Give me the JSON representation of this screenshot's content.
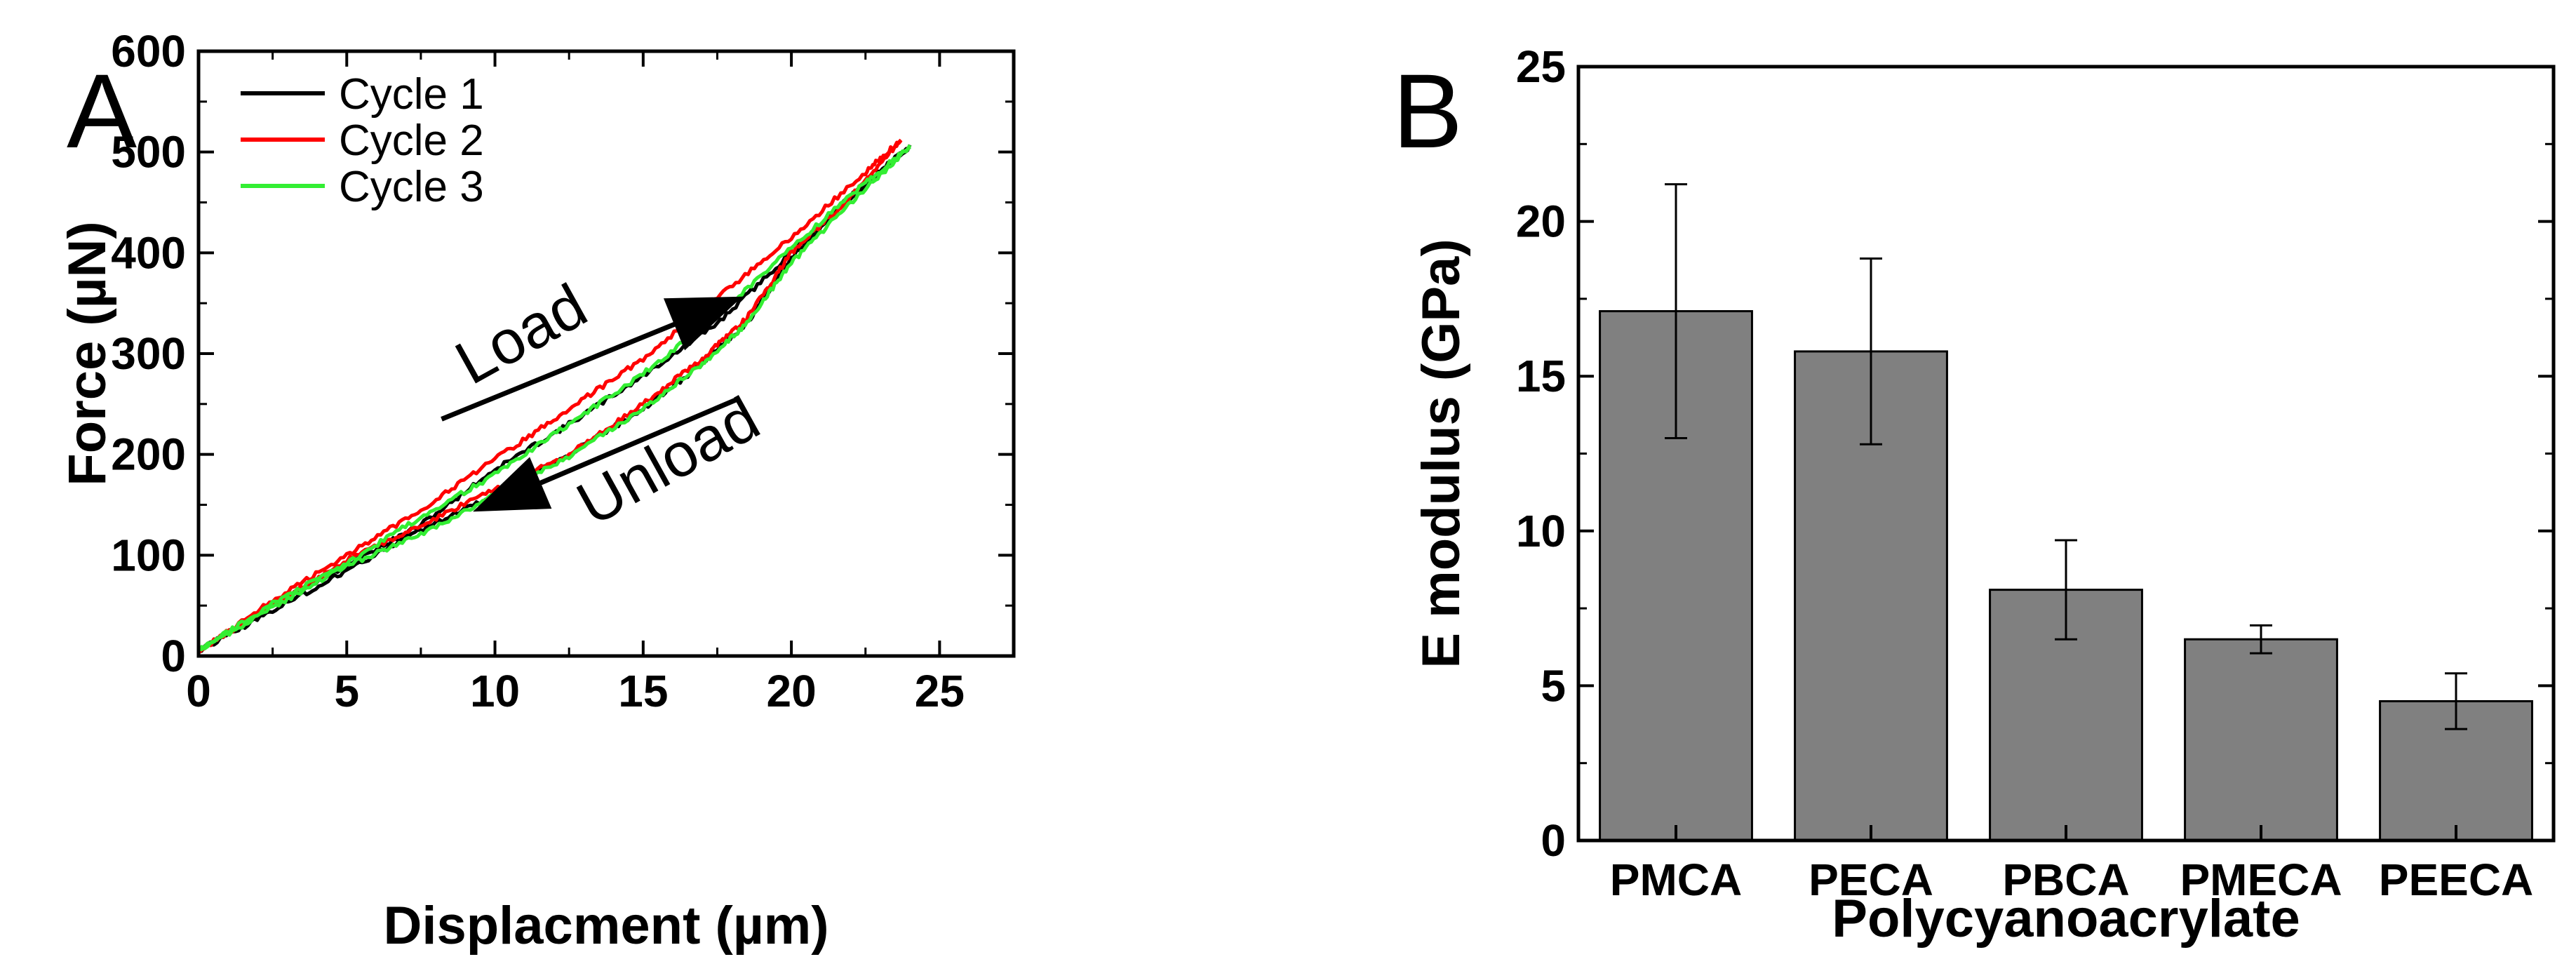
{
  "panels": {
    "a": "A",
    "b": "B"
  },
  "chart_data": [
    {
      "type": "line",
      "panel": "A",
      "title": "",
      "xlabel": "Displacment (µm)",
      "ylabel": "Force (µN)",
      "xlim": [
        0,
        27.5
      ],
      "ylim": [
        0,
        600
      ],
      "xticks": [
        0,
        5,
        10,
        15,
        20,
        25
      ],
      "yticks": [
        0,
        100,
        200,
        300,
        400,
        500,
        600
      ],
      "legend_position": "top-left",
      "grid": false,
      "annotations": [
        {
          "text": "Load",
          "direction": "up-right"
        },
        {
          "text": "Unload",
          "direction": "down-left"
        }
      ],
      "series": [
        {
          "name": "Cycle 1",
          "color": "#000000",
          "loading": [
            [
              0,
              5
            ],
            [
              2.5,
              50
            ],
            [
              5,
              90
            ],
            [
              7.5,
              130
            ],
            [
              10,
              185
            ],
            [
              12.5,
              230
            ],
            [
              15,
              278
            ],
            [
              17.5,
              330
            ],
            [
              20,
              400
            ],
            [
              22.5,
              470
            ],
            [
              24,
              505
            ]
          ],
          "unloading": [
            [
              24,
              505
            ],
            [
              22,
              455
            ],
            [
              20,
              395
            ],
            [
              18.5,
              330
            ],
            [
              17,
              290
            ],
            [
              15,
              245
            ],
            [
              12.5,
              200
            ],
            [
              10,
              160
            ],
            [
              7.5,
              125
            ],
            [
              5,
              85
            ],
            [
              2.5,
              45
            ],
            [
              0,
              5
            ]
          ]
        },
        {
          "name": "Cycle 2",
          "color": "#ff0000",
          "loading": [
            [
              0,
              5
            ],
            [
              2.5,
              55
            ],
            [
              5,
              100
            ],
            [
              7.5,
              145
            ],
            [
              10,
              195
            ],
            [
              12.5,
              245
            ],
            [
              15,
              295
            ],
            [
              17.5,
              355
            ],
            [
              20,
              415
            ],
            [
              22.5,
              480
            ],
            [
              23.7,
              512
            ]
          ],
          "unloading": [
            [
              23.7,
              512
            ],
            [
              22,
              455
            ],
            [
              20,
              400
            ],
            [
              18.5,
              335
            ],
            [
              17,
              295
            ],
            [
              15,
              250
            ],
            [
              12.5,
              200
            ],
            [
              10,
              165
            ],
            [
              7.5,
              130
            ],
            [
              5,
              95
            ],
            [
              2.5,
              50
            ],
            [
              0,
              5
            ]
          ]
        },
        {
          "name": "Cycle 3",
          "color": "#33ee33",
          "loading": [
            [
              0,
              5
            ],
            [
              2.5,
              52
            ],
            [
              5,
              92
            ],
            [
              7.5,
              138
            ],
            [
              10,
              180
            ],
            [
              12.5,
              230
            ],
            [
              15,
              280
            ],
            [
              17.5,
              338
            ],
            [
              20,
              405
            ],
            [
              22.5,
              470
            ],
            [
              24,
              505
            ]
          ],
          "unloading": [
            [
              24,
              505
            ],
            [
              22,
              450
            ],
            [
              20,
              390
            ],
            [
              18.5,
              330
            ],
            [
              17,
              290
            ],
            [
              15,
              245
            ],
            [
              12.5,
              198
            ],
            [
              10,
              160
            ],
            [
              7.5,
              120
            ],
            [
              5,
              90
            ],
            [
              2.5,
              48
            ],
            [
              0,
              5
            ]
          ]
        }
      ]
    },
    {
      "type": "bar",
      "panel": "B",
      "title": "",
      "xlabel": "Polycyanoacrylate",
      "ylabel": "E modulus (GPa)",
      "ylim": [
        0,
        25
      ],
      "yticks": [
        0,
        5,
        10,
        15,
        20,
        25
      ],
      "grid": false,
      "bar_color": "#808080",
      "categories": [
        "PMCA",
        "PECA",
        "PBCA",
        "PMECA",
        "PEECA"
      ],
      "values": [
        17.1,
        15.8,
        8.1,
        6.5,
        4.5
      ],
      "errors": [
        4.1,
        3.0,
        1.6,
        0.45,
        0.9
      ]
    }
  ]
}
